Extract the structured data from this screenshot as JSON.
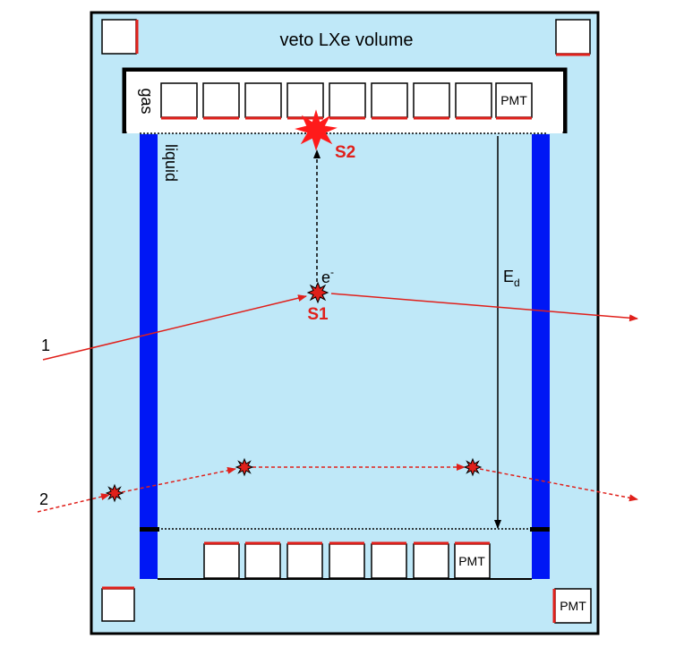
{
  "colors": {
    "background": "#ffffff",
    "veto_fill": "#bfe8f8",
    "tpc_wall": "#0017f5",
    "track": "#e0201b",
    "outline": "#000000"
  },
  "labels": {
    "veto": "veto LXe volume",
    "gas": "gas",
    "liquid": "liquid",
    "pmt": "PMT",
    "s1": "S1",
    "s2": "S2",
    "electron": "e",
    "electron_sup": "-",
    "field": "E",
    "field_sub": "d",
    "track1": "1",
    "track2": "2"
  },
  "icons": {
    "interaction": "star-burst-icon",
    "pmt": "square-pmt-icon"
  }
}
